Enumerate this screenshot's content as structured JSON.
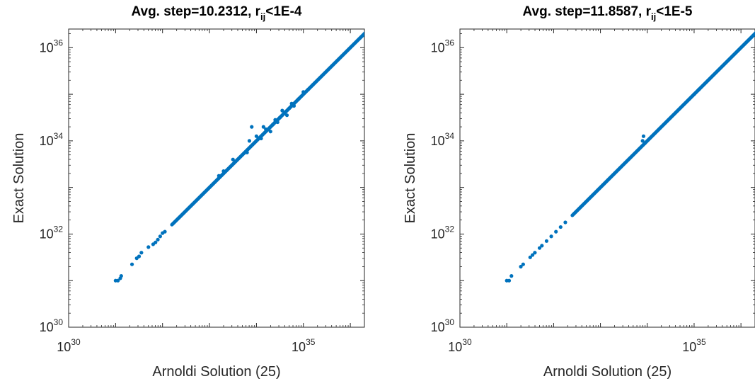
{
  "chart_data": [
    {
      "type": "scatter",
      "title": {
        "prefix": "Avg. step=10.2312, r",
        "sub": "ij",
        "suffix": "<1E-4"
      },
      "xlabel": "Arnoldi Solution (25)",
      "ylabel": "Exact Solution",
      "xscale": "log",
      "yscale": "log",
      "xlim": [
        "1e30",
        "1e36.3"
      ],
      "ylim": [
        "1e30",
        "1e36.4"
      ],
      "xticks": [
        {
          "base": "10",
          "exp": "30"
        },
        {
          "base": "10",
          "exp": "35"
        }
      ],
      "yticks": [
        {
          "base": "10",
          "exp": "30"
        },
        {
          "base": "10",
          "exp": "32"
        },
        {
          "base": "10",
          "exp": "34"
        },
        {
          "base": "10",
          "exp": "36"
        }
      ],
      "line": {
        "from_exp": 32.2,
        "to_exp": 36.4
      },
      "color": "#0072BD",
      "points": [
        [
          31.0,
          31.0
        ],
        [
          31.05,
          31.0
        ],
        [
          31.1,
          31.05
        ],
        [
          31.12,
          31.1
        ],
        [
          31.35,
          31.35
        ],
        [
          31.45,
          31.48
        ],
        [
          31.5,
          31.52
        ],
        [
          31.55,
          31.6
        ],
        [
          31.7,
          31.72
        ],
        [
          31.8,
          31.78
        ],
        [
          31.85,
          31.82
        ],
        [
          31.9,
          31.88
        ],
        [
          31.95,
          31.95
        ],
        [
          32.0,
          32.02
        ],
        [
          32.05,
          32.05
        ],
        [
          33.2,
          33.25
        ],
        [
          33.3,
          33.35
        ],
        [
          33.5,
          33.6
        ],
        [
          33.8,
          33.75
        ],
        [
          33.85,
          34.0
        ],
        [
          33.9,
          34.3
        ],
        [
          34.0,
          34.1
        ],
        [
          34.1,
          34.05
        ],
        [
          34.15,
          34.3
        ],
        [
          34.2,
          34.25
        ],
        [
          34.3,
          34.2
        ],
        [
          34.35,
          34.35
        ],
        [
          34.4,
          34.45
        ],
        [
          34.45,
          34.4
        ],
        [
          34.5,
          34.5
        ],
        [
          34.55,
          34.65
        ],
        [
          34.6,
          34.6
        ],
        [
          34.65,
          34.55
        ],
        [
          34.7,
          34.7
        ],
        [
          34.75,
          34.8
        ],
        [
          34.8,
          34.75
        ],
        [
          34.9,
          34.9
        ],
        [
          35.0,
          35.05
        ],
        [
          35.1,
          35.1
        ],
        [
          35.2,
          35.2
        ]
      ]
    },
    {
      "type": "scatter",
      "title": {
        "prefix": "Avg. step=11.8587, r",
        "sub": "ij",
        "suffix": "<1E-5"
      },
      "xlabel": "Arnoldi Solution (25)",
      "ylabel": "Exact Solution",
      "xscale": "log",
      "yscale": "log",
      "xlim": [
        "1e30",
        "1e36.3"
      ],
      "ylim": [
        "1e30",
        "1e36.4"
      ],
      "xticks": [
        {
          "base": "10",
          "exp": "30"
        },
        {
          "base": "10",
          "exp": "35"
        }
      ],
      "yticks": [
        {
          "base": "10",
          "exp": "30"
        },
        {
          "base": "10",
          "exp": "32"
        },
        {
          "base": "10",
          "exp": "34"
        },
        {
          "base": "10",
          "exp": "36"
        }
      ],
      "line": {
        "from_exp": 32.4,
        "to_exp": 36.4
      },
      "color": "#0072BD",
      "points": [
        [
          31.0,
          31.0
        ],
        [
          31.05,
          31.0
        ],
        [
          31.1,
          31.1
        ],
        [
          31.3,
          31.3
        ],
        [
          31.35,
          31.35
        ],
        [
          31.5,
          31.5
        ],
        [
          31.55,
          31.55
        ],
        [
          31.6,
          31.6
        ],
        [
          31.7,
          31.7
        ],
        [
          31.75,
          31.75
        ],
        [
          31.85,
          31.85
        ],
        [
          31.95,
          31.95
        ],
        [
          32.05,
          32.05
        ],
        [
          32.15,
          32.15
        ],
        [
          32.25,
          32.25
        ],
        [
          33.9,
          34.0
        ],
        [
          33.92,
          34.1
        ],
        [
          33.95,
          33.95
        ],
        [
          35.0,
          35.0
        ],
        [
          35.1,
          35.1
        ]
      ]
    }
  ]
}
